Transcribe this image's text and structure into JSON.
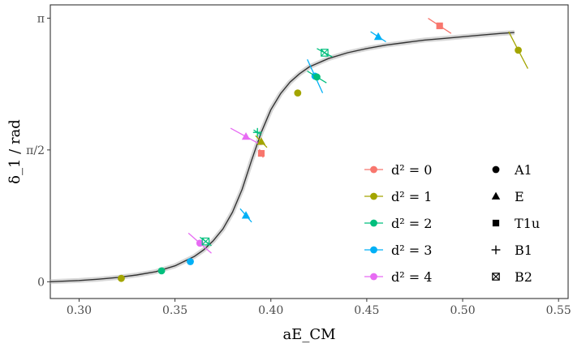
{
  "chart_data": {
    "type": "scatter",
    "title": "",
    "xlabel": "aE_CM",
    "ylabel": "δ_1 / rad",
    "xlim": [
      0.285,
      0.555
    ],
    "ylim": [
      -0.2,
      3.3
    ],
    "x_ticks": [
      {
        "value": 0.3,
        "label": "0.30"
      },
      {
        "value": 0.35,
        "label": "0.35"
      },
      {
        "value": 0.4,
        "label": "0.40"
      },
      {
        "value": 0.45,
        "label": "0.45"
      },
      {
        "value": 0.5,
        "label": "0.50"
      },
      {
        "value": 0.55,
        "label": "0.55"
      }
    ],
    "y_ticks": [
      {
        "value": 0,
        "label": "0"
      },
      {
        "value": 1.5708,
        "label": "π/2"
      },
      {
        "value": 3.1416,
        "label": "π"
      }
    ],
    "grid": false,
    "colors": {
      "d0": "#F8766D",
      "d1": "#A3A500",
      "d2": "#00BF7D",
      "d3": "#00B0F6",
      "d4": "#E76BF3",
      "curve": "#333333",
      "band": "#bdbdbd"
    },
    "legend_color": {
      "placement": "bottom-right",
      "entries": [
        {
          "group": "d0",
          "label": "d² = 0"
        },
        {
          "group": "d1",
          "label": "d² = 1"
        },
        {
          "group": "d2",
          "label": "d² = 2"
        },
        {
          "group": "d3",
          "label": "d² = 3"
        },
        {
          "group": "d4",
          "label": "d² = 4"
        }
      ]
    },
    "legend_shape": {
      "placement": "bottom-right",
      "entries": [
        {
          "shape": "circle",
          "label": "A1"
        },
        {
          "shape": "triangle",
          "label": "E"
        },
        {
          "shape": "square",
          "label": "T1u"
        },
        {
          "shape": "plus",
          "label": "B1"
        },
        {
          "shape": "boxcross",
          "label": "B2"
        }
      ]
    },
    "points": [
      {
        "group": "d1",
        "shape": "circle",
        "x": 0.322,
        "y": 0.04
      },
      {
        "group": "d2",
        "shape": "circle",
        "x": 0.343,
        "y": 0.13
      },
      {
        "group": "d3",
        "shape": "circle",
        "x": 0.358,
        "y": 0.24
      },
      {
        "group": "d4",
        "shape": "circle",
        "x": 0.363,
        "y": 0.46,
        "err": {
          "dx": 0.006,
          "dy": 0.12
        }
      },
      {
        "group": "d2",
        "shape": "boxcross",
        "x": 0.366,
        "y": 0.48,
        "err": {
          "dx": 0.003,
          "dy": 0.05
        }
      },
      {
        "group": "d3",
        "shape": "triangle",
        "x": 0.387,
        "y": 0.79,
        "err": {
          "dx": 0.003,
          "dy": 0.08
        }
      },
      {
        "group": "d4",
        "shape": "triangle",
        "x": 0.387,
        "y": 1.73,
        "err": {
          "dx": 0.008,
          "dy": 0.1
        }
      },
      {
        "group": "d2",
        "shape": "plus",
        "x": 0.393,
        "y": 1.78,
        "err": {
          "dx": 0.002,
          "dy": 0.03
        }
      },
      {
        "group": "d1",
        "shape": "triangle",
        "x": 0.395,
        "y": 1.67,
        "err": {
          "dx": 0.003,
          "dy": 0.07
        }
      },
      {
        "group": "d0",
        "shape": "square",
        "x": 0.395,
        "y": 1.53,
        "err": {
          "dx": 0.001,
          "dy": 0.05
        }
      },
      {
        "group": "d1",
        "shape": "circle",
        "x": 0.414,
        "y": 2.25
      },
      {
        "group": "d3",
        "shape": "circle",
        "x": 0.423,
        "y": 2.45,
        "err": {
          "dx": 0.004,
          "dy": 0.2
        }
      },
      {
        "group": "d2",
        "shape": "circle",
        "x": 0.424,
        "y": 2.44,
        "err": {
          "dx": 0.005,
          "dy": 0.07
        }
      },
      {
        "group": "d2",
        "shape": "boxcross",
        "x": 0.428,
        "y": 2.73,
        "err": {
          "dx": 0.004,
          "dy": 0.05
        }
      },
      {
        "group": "d3",
        "shape": "triangle",
        "x": 0.456,
        "y": 2.92,
        "err": {
          "dx": 0.004,
          "dy": 0.06
        }
      },
      {
        "group": "d0",
        "shape": "square",
        "x": 0.488,
        "y": 3.05,
        "err": {
          "dx": 0.006,
          "dy": 0.09
        }
      },
      {
        "group": "d1",
        "shape": "circle",
        "x": 0.529,
        "y": 2.76,
        "err": {
          "dx": 0.005,
          "dy": 0.22
        }
      }
    ],
    "fit_curve": {
      "x": [
        0.285,
        0.29,
        0.3,
        0.31,
        0.32,
        0.33,
        0.34,
        0.35,
        0.36,
        0.365,
        0.37,
        0.375,
        0.38,
        0.385,
        0.39,
        0.395,
        0.4,
        0.405,
        0.41,
        0.415,
        0.42,
        0.43,
        0.44,
        0.45,
        0.46,
        0.47,
        0.48,
        0.49,
        0.5,
        0.51,
        0.52,
        0.527
      ],
      "y": [
        0.0,
        0.005,
        0.015,
        0.03,
        0.05,
        0.08,
        0.12,
        0.19,
        0.3,
        0.38,
        0.49,
        0.63,
        0.83,
        1.1,
        1.45,
        1.78,
        2.05,
        2.24,
        2.38,
        2.48,
        2.56,
        2.66,
        2.73,
        2.78,
        2.82,
        2.85,
        2.88,
        2.9,
        2.92,
        2.94,
        2.96,
        2.97
      ]
    }
  }
}
